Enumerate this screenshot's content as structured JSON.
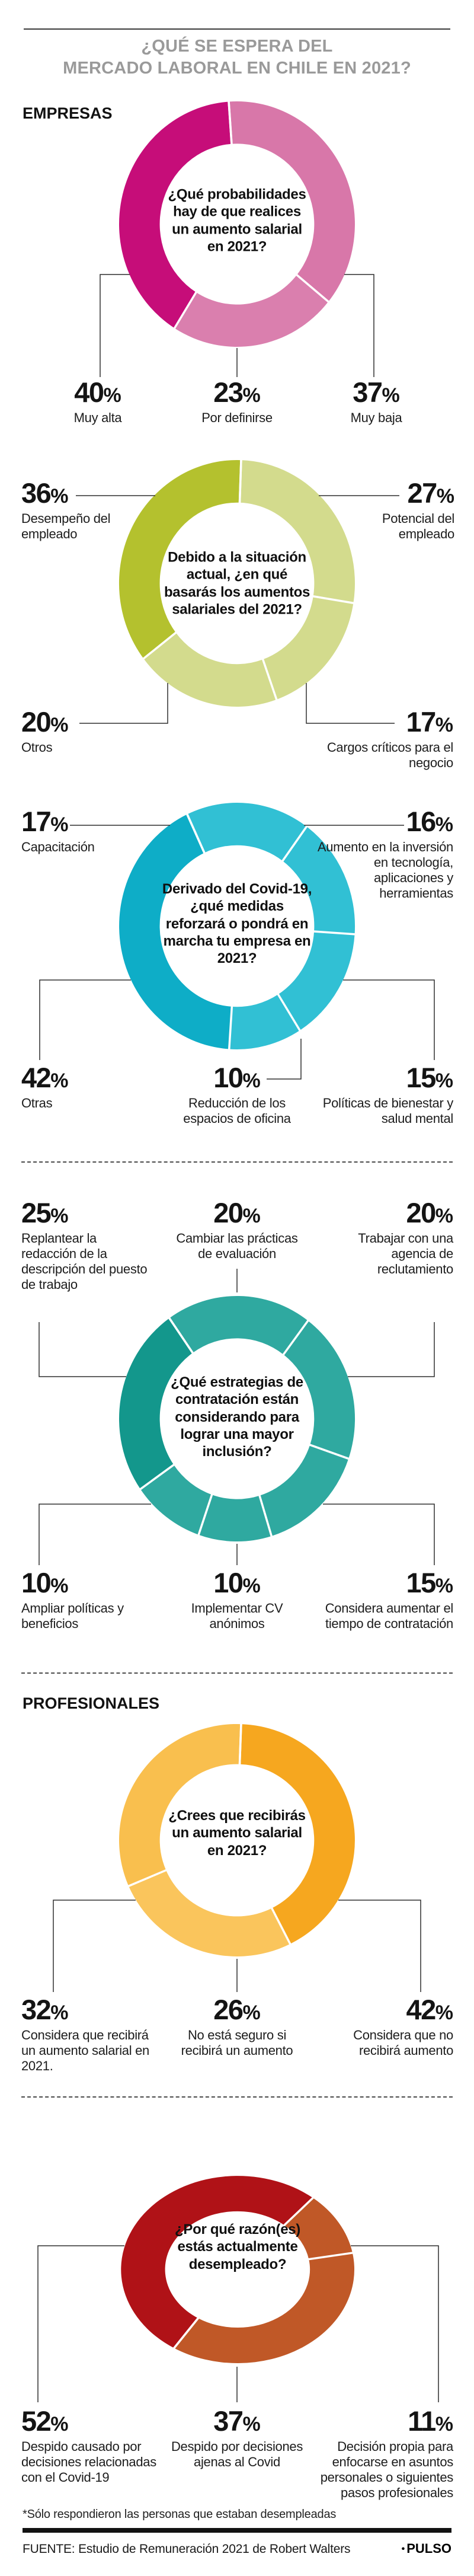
{
  "header": {
    "title_line1": "¿QUÉ SE ESPERA DEL",
    "title_line2": "MERCADO LABORAL EN CHILE EN 2021?"
  },
  "sections": {
    "empresas": "EMPRESAS",
    "profesionales": "PROFESIONALES"
  },
  "misc": {
    "percent_symbol": "%"
  },
  "chart_data": [
    {
      "type": "pie",
      "variant": "donut",
      "section": "EMPRESAS",
      "title": "¿Qué probabilidades hay de que realices un aumento salarial en 2021?",
      "start_angle": 356,
      "legend_position": "callouts",
      "segments": [
        {
          "label": "Muy baja",
          "value": 37,
          "color": "#d877a9"
        },
        {
          "label": "Por definirse",
          "value": 23,
          "color": "#da7fae"
        },
        {
          "label": "Muy alta",
          "value": 40,
          "color": "#c60d79"
        }
      ]
    },
    {
      "type": "pie",
      "variant": "donut",
      "section": "EMPRESAS",
      "title": "Debido a la situación actual, ¿en qué basarás los aumentos salariales del 2021?",
      "start_angle": 2,
      "legend_position": "callouts",
      "segments": [
        {
          "label": "Potencial del empleado",
          "value": 27,
          "color": "#d3db8d"
        },
        {
          "label": "Cargos críticos para el negocio",
          "value": 17,
          "color": "#d3db8d"
        },
        {
          "label": "Otros",
          "value": 20,
          "color": "#d3db8d"
        },
        {
          "label": "Desempeño del empleado",
          "value": 36,
          "color": "#b4c12e"
        }
      ]
    },
    {
      "type": "pie",
      "variant": "donut",
      "section": "EMPRESAS",
      "title": "Derivado del Covid-19, ¿qué medidas reforzará o pondrá en marcha tu empresa en 2021?",
      "start_angle": 335,
      "legend_position": "callouts",
      "segments": [
        {
          "label": "Capacitación",
          "value": 17,
          "color": "#31c0d4"
        },
        {
          "label": "Aumento en la inversión en tecnología, aplicaciones y herramientas",
          "value": 16,
          "color": "#31c0d4"
        },
        {
          "label": "Políticas de bienestar y salud mental",
          "value": 15,
          "color": "#31c0d4"
        },
        {
          "label": "Reducción de los espacios de oficina",
          "value": 10,
          "color": "#31c0d4"
        },
        {
          "label": "Otras",
          "value": 42,
          "color": "#0eadc7"
        }
      ]
    },
    {
      "type": "pie",
      "variant": "donut",
      "section": "EMPRESAS",
      "title": "¿Qué estrategias de contratación están considerando para lograr una mayor inclusión?",
      "start_angle": 325,
      "legend_position": "callouts",
      "segments": [
        {
          "label": "Cambiar las prácticas de evaluación",
          "value": 20,
          "color": "#2fa9a0"
        },
        {
          "label": "Trabajar con una agencia de reclutamiento",
          "value": 20,
          "color": "#2fa9a0"
        },
        {
          "label": "Considera aumentar el tiempo de contratación",
          "value": 15,
          "color": "#2fa9a0"
        },
        {
          "label": "Implementar CV anónimos",
          "value": 10,
          "color": "#2fa9a0"
        },
        {
          "label": "Ampliar políticas y beneficios",
          "value": 10,
          "color": "#2fa9a0"
        },
        {
          "label": "Replantear la redacción de la descripción del puesto de trabajo",
          "value": 25,
          "color": "#13978c"
        }
      ]
    },
    {
      "type": "pie",
      "variant": "donut",
      "section": "PROFESIONALES",
      "title": "¿Crees que recibirás un aumento salarial en 2021?",
      "start_angle": 2,
      "legend_position": "callouts",
      "segments": [
        {
          "label": "Considera que no recibirá aumento",
          "value": 42,
          "color": "#f6a71f"
        },
        {
          "label": "No está seguro si recibirá un aumento",
          "value": 26,
          "color": "#fac55c"
        },
        {
          "label": "Considera que recibirá un aumento salarial en 2021.",
          "value": 32,
          "color": "#f9bf4e"
        }
      ]
    },
    {
      "type": "pie",
      "variant": "donut",
      "section": "PROFESIONALES",
      "title": "¿Por qué razón(es) estás actualmente desempleado?",
      "start_angle": 213,
      "legend_position": "callouts",
      "segments": [
        {
          "label": "Despido causado por decisiones relacionadas con el Covid-19",
          "value": 52,
          "color": "#b01217"
        },
        {
          "label": "Decisión propia para enfocarse en asuntos personales o siguientes pasos profesionales",
          "value": 11,
          "color": "#c05827"
        },
        {
          "label": "Despido por decisiones ajenas al Covid",
          "value": 37,
          "color": "#c05827"
        }
      ]
    }
  ],
  "footer": {
    "footnote": "*Sólo respondieron las personas que estaban desempleadas",
    "source": "FUENTE: Estudio de Remuneración 2021 de Robert Walters",
    "brand_bullet": "•",
    "brand": "PULSO"
  }
}
